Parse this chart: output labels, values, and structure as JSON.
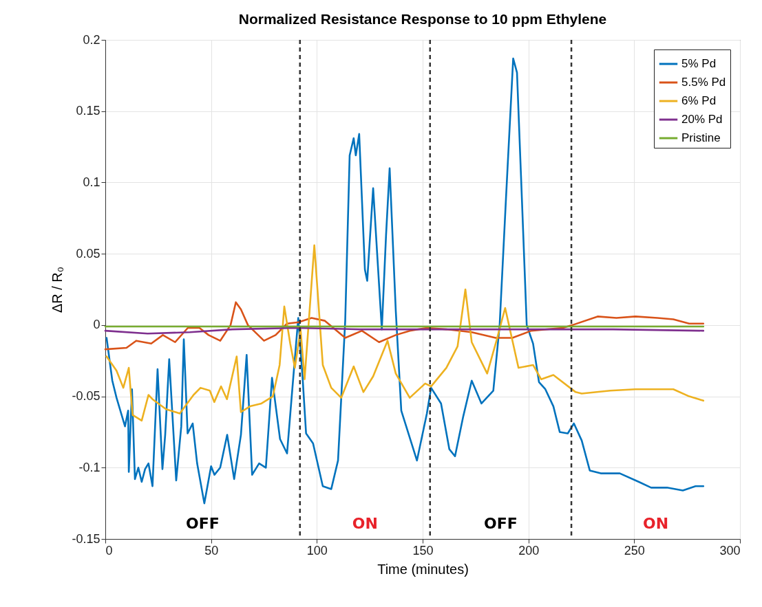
{
  "chart_data": {
    "type": "line",
    "title": "Normalized Resistance Response to 10 ppm Ethylene",
    "xlabel": "Time (minutes)",
    "ylabel": "ΔR / R₀",
    "xlim": [
      0,
      300
    ],
    "xticks": [
      0,
      50,
      100,
      150,
      200,
      250,
      300
    ],
    "ylim": [
      -0.15,
      0.2
    ],
    "yticks": [
      -0.15,
      -0.1,
      -0.05,
      0,
      0.05,
      0.1,
      0.15,
      0.2
    ],
    "grid": true,
    "legend": "top right",
    "line_style": "solid",
    "marker": "none",
    "series": [
      {
        "name": "5% Pd",
        "color": "#0072bd",
        "x": [
          0.6,
          3.3,
          5.3,
          9.3,
          10.8,
          11.1,
          12.6,
          14,
          15.6,
          17.2,
          18.8,
          20.4,
          22.3,
          24.7,
          27,
          28.3,
          30.2,
          33.5,
          35.9,
          37.1,
          38.9,
          41.3,
          43.4,
          46.8,
          50,
          51.6,
          54.3,
          57.6,
          60.9,
          64.1,
          66.8,
          69.4,
          72.7,
          75.9,
          78.8,
          82.6,
          85.9,
          88.5,
          91.2,
          93.3,
          94.9,
          98.2,
          102.8,
          106.8,
          110,
          113.4,
          115.5,
          117.4,
          118.4,
          120,
          122.7,
          123.8,
          126.6,
          130.7,
          132.7,
          134.4,
          137.3,
          139.9,
          147.3,
          152,
          154,
          158.7,
          162.6,
          165.3,
          169.2,
          173.2,
          177.8,
          183.4,
          186.4,
          189.4,
          192.8,
          194.6,
          196.9,
          199.2,
          202.2,
          205,
          208,
          211.8,
          214.8,
          218.6,
          221.5,
          225.2,
          229,
          234.2,
          243.2,
          252.2,
          258,
          265.5,
          273,
          279,
          282.7
        ],
        "values": [
          -0.009,
          -0.039,
          -0.051,
          -0.071,
          -0.06,
          -0.103,
          -0.045,
          -0.108,
          -0.1,
          -0.11,
          -0.101,
          -0.097,
          -0.113,
          -0.031,
          -0.101,
          -0.077,
          -0.024,
          -0.109,
          -0.071,
          -0.01,
          -0.076,
          -0.069,
          -0.097,
          -0.125,
          -0.099,
          -0.105,
          -0.1,
          -0.077,
          -0.108,
          -0.077,
          -0.021,
          -0.105,
          -0.097,
          -0.1,
          -0.037,
          -0.08,
          -0.09,
          -0.043,
          0.005,
          -0.038,
          -0.076,
          -0.083,
          -0.113,
          -0.115,
          -0.095,
          0.003,
          0.119,
          0.131,
          0.119,
          0.134,
          0.039,
          0.031,
          0.096,
          -0.003,
          0.063,
          0.11,
          0.01,
          -0.06,
          -0.095,
          -0.062,
          -0.044,
          -0.055,
          -0.087,
          -0.092,
          -0.064,
          -0.039,
          -0.055,
          -0.046,
          0,
          0.089,
          0.187,
          0.177,
          0.089,
          0,
          -0.013,
          -0.04,
          -0.045,
          -0.057,
          -0.075,
          -0.076,
          -0.069,
          -0.081,
          -0.102,
          -0.104,
          -0.104,
          -0.11,
          -0.114,
          -0.114,
          -0.116,
          -0.113,
          -0.113
        ]
      },
      {
        "name": "5.5% Pd",
        "color": "#d95319",
        "x": [
          0,
          10,
          14.6,
          21.7,
          27.2,
          33,
          39,
          44.5,
          48.8,
          54.3,
          59.2,
          61.7,
          64.1,
          67.4,
          75,
          80.5,
          85.9,
          91.3,
          97.5,
          103.8,
          113.4,
          121.3,
          129.4,
          137.3,
          143.9,
          152,
          161.2,
          173.2,
          184.5,
          192.4,
          201.3,
          216.3,
          220.8,
          232.7,
          241.6,
          250.6,
          261,
          268.5,
          276,
          282.7
        ],
        "values": [
          -0.017,
          -0.016,
          -0.011,
          -0.013,
          -0.007,
          -0.012,
          -0.002,
          -0.002,
          -0.007,
          -0.011,
          0,
          0.016,
          0.011,
          0,
          -0.011,
          -0.007,
          0.001,
          0.002,
          0.005,
          0.003,
          -0.009,
          -0.004,
          -0.012,
          -0.007,
          -0.004,
          -0.002,
          -0.003,
          -0.005,
          -0.009,
          -0.009,
          -0.004,
          -0.002,
          0,
          0.006,
          0.005,
          0.006,
          0.005,
          0.004,
          0.001,
          0.001
        ]
      },
      {
        "name": "6% Pd",
        "color": "#edb120",
        "x": [
          0.6,
          5.3,
          8.5,
          11.1,
          12.9,
          17.2,
          20.4,
          22.3,
          28.7,
          35.2,
          41.7,
          45,
          49.4,
          51.5,
          54.7,
          57.5,
          62.1,
          64.1,
          68.4,
          73.8,
          79.2,
          82.4,
          84.6,
          87.4,
          89.6,
          92.3,
          94.2,
          98.8,
          102.8,
          106.8,
          111.5,
          117.4,
          122,
          126.6,
          133.4,
          137.3,
          143.9,
          151.2,
          154,
          161.2,
          166.5,
          170.2,
          173.2,
          180.5,
          184.9,
          189,
          195.3,
          202.2,
          206,
          211.8,
          222.3,
          225.2,
          238.7,
          250.6,
          268.5,
          276,
          282.7
        ],
        "values": [
          -0.022,
          -0.032,
          -0.044,
          -0.03,
          -0.063,
          -0.067,
          -0.049,
          -0.052,
          -0.059,
          -0.062,
          -0.049,
          -0.044,
          -0.046,
          -0.054,
          -0.043,
          -0.052,
          -0.022,
          -0.061,
          -0.057,
          -0.055,
          -0.05,
          -0.028,
          0.013,
          -0.013,
          -0.03,
          -0.003,
          -0.038,
          0.056,
          -0.028,
          -0.044,
          -0.051,
          -0.029,
          -0.047,
          -0.036,
          -0.011,
          -0.034,
          -0.051,
          -0.041,
          -0.043,
          -0.03,
          -0.015,
          0.025,
          -0.012,
          -0.034,
          -0.011,
          0.012,
          -0.03,
          -0.028,
          -0.038,
          -0.035,
          -0.047,
          -0.048,
          -0.046,
          -0.045,
          -0.045,
          -0.05,
          -0.053
        ]
      },
      {
        "name": "20% Pd",
        "color": "#7e2f8e",
        "x": [
          0,
          20,
          40,
          60,
          90,
          120,
          160,
          200,
          240,
          282.7
        ],
        "values": [
          -0.004,
          -0.006,
          -0.005,
          -0.003,
          -0.002,
          -0.003,
          -0.003,
          -0.003,
          -0.003,
          -0.004
        ]
      },
      {
        "name": "Pristine",
        "color": "#77ac30",
        "x": [
          0,
          50,
          100,
          150,
          200,
          250,
          282.7
        ],
        "values": [
          -0.001,
          -0.001,
          -0.001,
          -0.001,
          -0.001,
          -0.001,
          -0.001
        ]
      }
    ],
    "annotations": [
      "OFF",
      "ON",
      "OFF",
      "ON"
    ],
    "ref_lines": [
      {
        "axis": "x",
        "value": 92,
        "color": "#333333",
        "line_style": "dashed"
      },
      {
        "axis": "x",
        "value": 153.5,
        "color": "#333333",
        "line_style": "dashed"
      },
      {
        "axis": "x",
        "value": 220.3,
        "color": "#333333",
        "line_style": "dashed"
      }
    ]
  }
}
